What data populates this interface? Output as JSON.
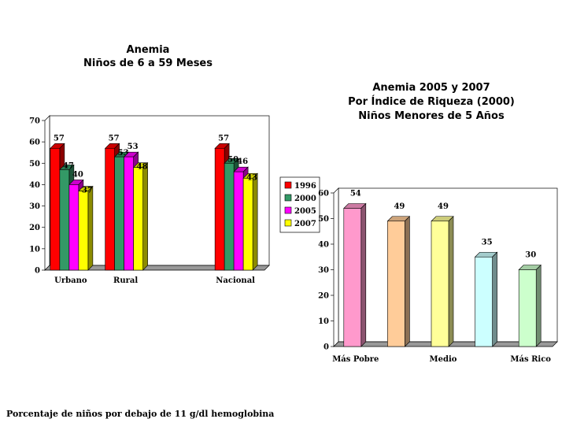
{
  "chart_data": [
    {
      "type": "bar",
      "title": "Anemia",
      "subtitle": "Niños de 6 a 59 Meses",
      "categories": [
        "Urbano",
        "Rural",
        "",
        "Nacional"
      ],
      "series": [
        {
          "name": "1996",
          "color": "#ff0000",
          "values": [
            57,
            57,
            null,
            57
          ]
        },
        {
          "name": "2000",
          "color": "#339966",
          "values": [
            47,
            53,
            null,
            50
          ]
        },
        {
          "name": "2005",
          "color": "#ff00ff",
          "values": [
            40,
            53,
            null,
            46
          ]
        },
        {
          "name": "2007",
          "color": "#ffff00",
          "values": [
            37,
            48,
            null,
            43
          ]
        }
      ],
      "ylim": [
        0,
        70
      ],
      "yticks": [
        0,
        10,
        20,
        30,
        40,
        50,
        60,
        70
      ],
      "legend": "right",
      "grid": false,
      "style": "3d"
    },
    {
      "type": "bar",
      "title": "Anemia 2005 y 2007",
      "subtitle": "Por Índice de Riqueza (2000)",
      "subtitle2": "Niños Menores de 5 Años",
      "categories": [
        "Más Pobre",
        "",
        "Medio",
        "",
        "Más Rico"
      ],
      "values": [
        54,
        49,
        49,
        35,
        30
      ],
      "colors": [
        "#ff99cc",
        "#ffcc99",
        "#ffff99",
        "#ccffff",
        "#ccffcc"
      ],
      "ylim": [
        0,
        60
      ],
      "yticks": [
        0,
        10,
        20,
        30,
        40,
        50,
        60
      ],
      "grid": false,
      "style": "3d"
    }
  ],
  "footnote": "Porcentaje de niños por debajo de 11 g/dl hemoglobina"
}
